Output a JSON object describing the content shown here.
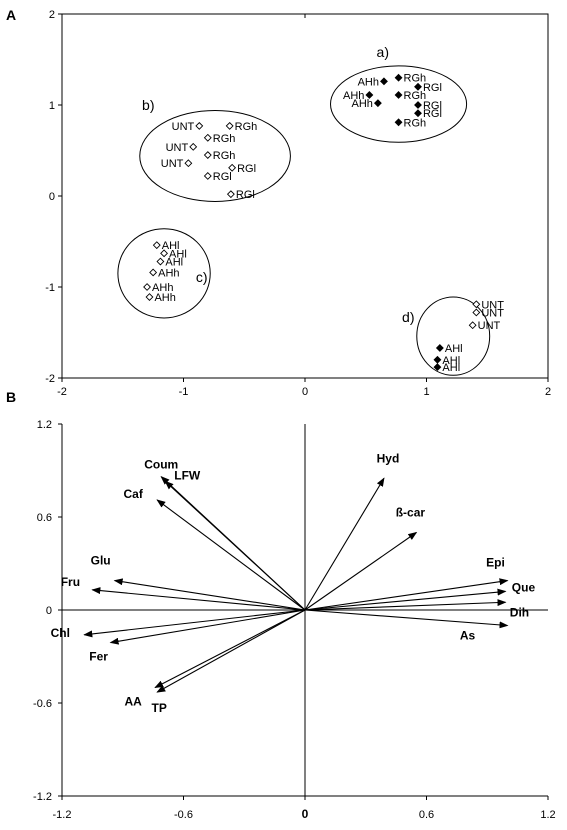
{
  "chart_data": [
    {
      "panel": "A",
      "type": "scatter",
      "xlim": [
        -2,
        2
      ],
      "ylim": [
        -2,
        2
      ],
      "xticks": [
        "-2",
        "-1",
        "0",
        "1",
        "2"
      ],
      "yticks": [
        "2",
        "1",
        "0",
        "-1",
        "-2"
      ],
      "grid": false,
      "points": [
        {
          "label": "AHh",
          "x": 0.65,
          "y": 1.26,
          "filled": true
        },
        {
          "label": "RGh",
          "x": 0.77,
          "y": 1.3,
          "filled": true
        },
        {
          "label": "RGl",
          "x": 0.93,
          "y": 1.2,
          "filled": true
        },
        {
          "label": "AHh",
          "x": 0.53,
          "y": 1.11,
          "filled": true
        },
        {
          "label": "RGh",
          "x": 0.77,
          "y": 1.11,
          "filled": true
        },
        {
          "label": "AHh",
          "x": 0.6,
          "y": 1.02,
          "filled": true
        },
        {
          "label": "RGl",
          "x": 0.93,
          "y": 1.0,
          "filled": true
        },
        {
          "label": "RGl",
          "x": 0.93,
          "y": 0.91,
          "filled": true
        },
        {
          "label": "RGh",
          "x": 0.77,
          "y": 0.81,
          "filled": true
        },
        {
          "label": "UNT",
          "x": -0.87,
          "y": 0.77,
          "filled": false
        },
        {
          "label": "RGh",
          "x": -0.62,
          "y": 0.77,
          "filled": false
        },
        {
          "label": "RGh",
          "x": -0.8,
          "y": 0.64,
          "filled": false
        },
        {
          "label": "UNT",
          "x": -0.92,
          "y": 0.54,
          "filled": false
        },
        {
          "label": "RGh",
          "x": -0.8,
          "y": 0.45,
          "filled": false
        },
        {
          "label": "UNT",
          "x": -0.96,
          "y": 0.36,
          "filled": false
        },
        {
          "label": "RGl",
          "x": -0.6,
          "y": 0.31,
          "filled": false
        },
        {
          "label": "RGl",
          "x": -0.8,
          "y": 0.22,
          "filled": false
        },
        {
          "label": "RGl",
          "x": -0.61,
          "y": 0.02,
          "filled": false
        },
        {
          "label": "AHl",
          "x": -1.22,
          "y": -0.54,
          "filled": false
        },
        {
          "label": "AHl",
          "x": -1.16,
          "y": -0.63,
          "filled": false
        },
        {
          "label": "AHl",
          "x": -1.19,
          "y": -0.72,
          "filled": false
        },
        {
          "label": "AHh",
          "x": -1.25,
          "y": -0.84,
          "filled": false
        },
        {
          "label": "AHh",
          "x": -1.3,
          "y": -1.0,
          "filled": false
        },
        {
          "label": "AHh",
          "x": -1.28,
          "y": -1.11,
          "filled": false
        },
        {
          "label": "UNT",
          "x": 1.41,
          "y": -1.19,
          "filled": false
        },
        {
          "label": "UNT",
          "x": 1.41,
          "y": -1.28,
          "filled": false
        },
        {
          "label": "UNT",
          "x": 1.38,
          "y": -1.42,
          "filled": false
        },
        {
          "label": "AHl",
          "x": 1.11,
          "y": -1.67,
          "filled": true
        },
        {
          "label": "AHl",
          "x": 1.09,
          "y": -1.8,
          "filled": true
        },
        {
          "label": "AHl",
          "x": 1.09,
          "y": -1.88,
          "filled": true
        }
      ],
      "groups": [
        {
          "label": "a)",
          "cx": 0.77,
          "cy": 1.01,
          "rx": 0.56,
          "ry": 0.42
        },
        {
          "label": "b)",
          "cx": -0.74,
          "cy": 0.44,
          "rx": 0.62,
          "ry": 0.5
        },
        {
          "label": "c)",
          "cx": -1.16,
          "cy": -0.85,
          "rx": 0.38,
          "ry": 0.49
        },
        {
          "label": "d)",
          "cx": 1.22,
          "cy": -1.54,
          "rx": 0.3,
          "ry": 0.43
        }
      ]
    },
    {
      "panel": "B",
      "type": "biplot",
      "xlim": [
        -1.2,
        1.2
      ],
      "ylim": [
        -1.2,
        1.2
      ],
      "xticks": [
        "-1.2",
        "-0.6",
        "0",
        "0.6",
        "1.2"
      ],
      "yticks": [
        "1.2",
        "0.6",
        "0",
        "-0.6",
        "-1.2"
      ],
      "grid": false,
      "vectors": [
        {
          "label": "Coum",
          "x": -0.71,
          "y": 0.86
        },
        {
          "label": "LFW",
          "x": -0.69,
          "y": 0.83
        },
        {
          "label": "Caf",
          "x": -0.73,
          "y": 0.71
        },
        {
          "label": "Glu",
          "x": -0.94,
          "y": 0.19
        },
        {
          "label": "Fru",
          "x": -1.05,
          "y": 0.13
        },
        {
          "label": "Chl",
          "x": -1.09,
          "y": -0.16
        },
        {
          "label": "Fer",
          "x": -0.96,
          "y": -0.21
        },
        {
          "label": "AA",
          "x": -0.74,
          "y": -0.5
        },
        {
          "label": "TP",
          "x": -0.73,
          "y": -0.53
        },
        {
          "label": "Hyd",
          "x": 0.39,
          "y": 0.85
        },
        {
          "label": "ß-car",
          "x": 0.55,
          "y": 0.5
        },
        {
          "label": "Epi",
          "x": 1.0,
          "y": 0.19
        },
        {
          "label": "Que",
          "x": 0.99,
          "y": 0.12
        },
        {
          "label": "Dih",
          "x": 0.99,
          "y": 0.05
        },
        {
          "label": "As",
          "x": 1.0,
          "y": -0.1
        }
      ]
    }
  ],
  "panels": {
    "a_letter": "A",
    "b_letter": "B"
  }
}
